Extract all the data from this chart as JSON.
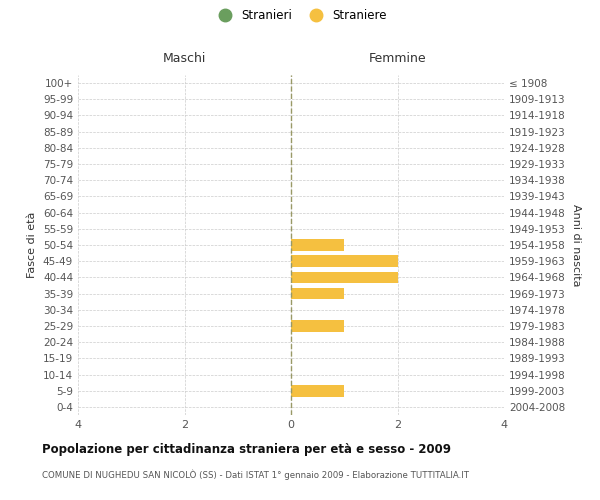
{
  "age_groups": [
    "100+",
    "95-99",
    "90-94",
    "85-89",
    "80-84",
    "75-79",
    "70-74",
    "65-69",
    "60-64",
    "55-59",
    "50-54",
    "45-49",
    "40-44",
    "35-39",
    "30-34",
    "25-29",
    "20-24",
    "15-19",
    "10-14",
    "5-9",
    "0-4"
  ],
  "birth_years": [
    "≤ 1908",
    "1909-1913",
    "1914-1918",
    "1919-1923",
    "1924-1928",
    "1929-1933",
    "1934-1938",
    "1939-1943",
    "1944-1948",
    "1949-1953",
    "1954-1958",
    "1959-1963",
    "1964-1968",
    "1969-1973",
    "1974-1978",
    "1979-1983",
    "1984-1988",
    "1989-1993",
    "1994-1998",
    "1999-2003",
    "2004-2008"
  ],
  "males_stranieri": [
    0,
    0,
    0,
    0,
    0,
    0,
    0,
    0,
    0,
    0,
    0,
    0,
    0,
    0,
    0,
    0,
    0,
    0,
    0,
    0,
    0
  ],
  "females_straniere": [
    0,
    0,
    0,
    0,
    0,
    0,
    0,
    0,
    0,
    0,
    1,
    2,
    2,
    1,
    0,
    1,
    0,
    0,
    0,
    1,
    0
  ],
  "color_males": "#6a9e5e",
  "color_females": "#f5c040",
  "xlim": 4,
  "title": "Popolazione per cittadinanza straniera per età e sesso - 2009",
  "subtitle": "COMUNE DI NUGHEDU SAN NICOLÒ (SS) - Dati ISTAT 1° gennaio 2009 - Elaborazione TUTTITALIA.IT",
  "ylabel_left": "Fasce di età",
  "ylabel_right": "Anni di nascita",
  "legend_stranieri": "Stranieri",
  "legend_straniere": "Straniere",
  "col_header_left": "Maschi",
  "col_header_right": "Femmine",
  "background_color": "#ffffff",
  "grid_color": "#cccccc",
  "center_line_color": "#999966"
}
